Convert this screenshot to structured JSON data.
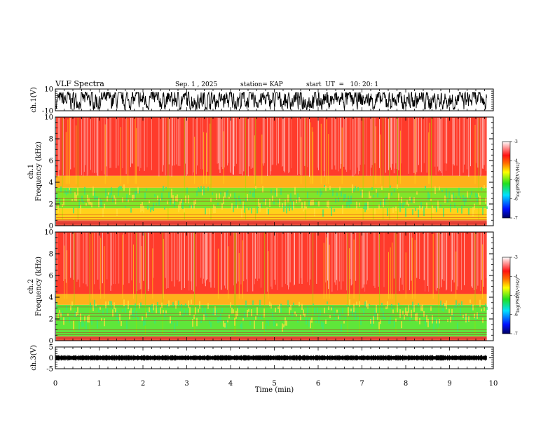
{
  "header": {
    "title": "VLF Spectra",
    "date": "Sep. 1 , 2025",
    "station": "station= KAP",
    "start": "start  UT  =   10: 20: 1"
  },
  "chart_data": [
    {
      "type": "line",
      "name": "ch.1 waveform",
      "ylabel": "ch.1(V)",
      "ylim": [
        -10,
        10
      ],
      "yticks": [
        {
          "v": 10,
          "label": "10"
        },
        {
          "v": -10,
          "label": "-10"
        }
      ],
      "xlim": [
        0,
        10
      ],
      "x_end": 9.85,
      "amplitude": [
        -9,
        7
      ]
    },
    {
      "type": "heatmap",
      "name": "ch.1 spectrogram",
      "ylabel": "ch.1\nFrequency (kHz)",
      "ylim": [
        0,
        10
      ],
      "yticks": [
        {
          "v": 0,
          "label": "0"
        },
        {
          "v": 2,
          "label": "2"
        },
        {
          "v": 4,
          "label": "4"
        },
        {
          "v": 6,
          "label": "6"
        },
        {
          "v": 8,
          "label": "8"
        },
        {
          "v": 10,
          "label": "10"
        }
      ],
      "xlim": [
        0,
        10
      ],
      "x_end": 9.85,
      "bands": [
        {
          "from": 0,
          "to": 0.5,
          "color": "#e84b3a"
        },
        {
          "from": 0.5,
          "to": 1.6,
          "color": "#ffd21a"
        },
        {
          "from": 1.6,
          "to": 3.5,
          "color": "#7fe62a"
        },
        {
          "from": 3.5,
          "to": 4.6,
          "color": "#ffb11a"
        },
        {
          "from": 4.6,
          "to": 10,
          "color": "#ff3b2b"
        }
      ],
      "colorbar": {
        "label": "log(PSD)(V²/Hz)",
        "range": [
          -7,
          -3
        ],
        "ticks": [
          {
            "v": -3,
            "label": "-3"
          },
          {
            "v": -4,
            "label": "-4"
          },
          {
            "v": -5,
            "label": "-5"
          },
          {
            "v": -6,
            "label": "-6"
          },
          {
            "v": -7,
            "label": "-7"
          }
        ]
      }
    },
    {
      "type": "heatmap",
      "name": "ch.2 spectrogram",
      "ylabel": "ch.2\nFrequency (kHz)",
      "ylim": [
        0,
        10
      ],
      "yticks": [
        {
          "v": 0,
          "label": "0"
        },
        {
          "v": 2,
          "label": "2"
        },
        {
          "v": 4,
          "label": "4"
        },
        {
          "v": 6,
          "label": "6"
        },
        {
          "v": 8,
          "label": "8"
        },
        {
          "v": 10,
          "label": "10"
        }
      ],
      "xlim": [
        0,
        10
      ],
      "x_end": 9.85,
      "bands": [
        {
          "from": 0,
          "to": 0.4,
          "color": "#e84b3a"
        },
        {
          "from": 0.4,
          "to": 3.3,
          "color": "#5fe63a"
        },
        {
          "from": 3.3,
          "to": 4.3,
          "color": "#ffb11a"
        },
        {
          "from": 4.3,
          "to": 10,
          "color": "#ff3b2b"
        }
      ],
      "colorbar": {
        "label": "log(PSD)(V²/Hz)",
        "range": [
          -7,
          -3
        ],
        "ticks": [
          {
            "v": -3,
            "label": "-3"
          },
          {
            "v": -4,
            "label": "-4"
          },
          {
            "v": -5,
            "label": "-5"
          },
          {
            "v": -6,
            "label": "-6"
          },
          {
            "v": -7,
            "label": "-7"
          }
        ]
      }
    },
    {
      "type": "line",
      "name": "ch.3 waveform",
      "ylabel": "ch.3(V)",
      "ylim": [
        -5,
        5
      ],
      "yticks": [
        {
          "v": 5,
          "label": "5"
        },
        {
          "v": 0,
          "label": "0"
        },
        {
          "v": -5,
          "label": "-5"
        }
      ],
      "xlim": [
        0,
        10
      ],
      "x_end": 9.85,
      "level": 0,
      "amplitude": [
        -1,
        1
      ]
    }
  ],
  "xaxis": {
    "label": "Time (min)",
    "range": [
      0,
      10
    ],
    "ticks": [
      {
        "v": 0,
        "label": "0"
      },
      {
        "v": 1,
        "label": "1"
      },
      {
        "v": 2,
        "label": "2"
      },
      {
        "v": 3,
        "label": "3"
      },
      {
        "v": 4,
        "label": "4"
      },
      {
        "v": 5,
        "label": "5"
      },
      {
        "v": 6,
        "label": "6"
      },
      {
        "v": 7,
        "label": "7"
      },
      {
        "v": 8,
        "label": "8"
      },
      {
        "v": 9,
        "label": "9"
      },
      {
        "v": 10,
        "label": "10"
      }
    ]
  },
  "colors": {
    "axis": "#000000",
    "trace": "#000000"
  }
}
